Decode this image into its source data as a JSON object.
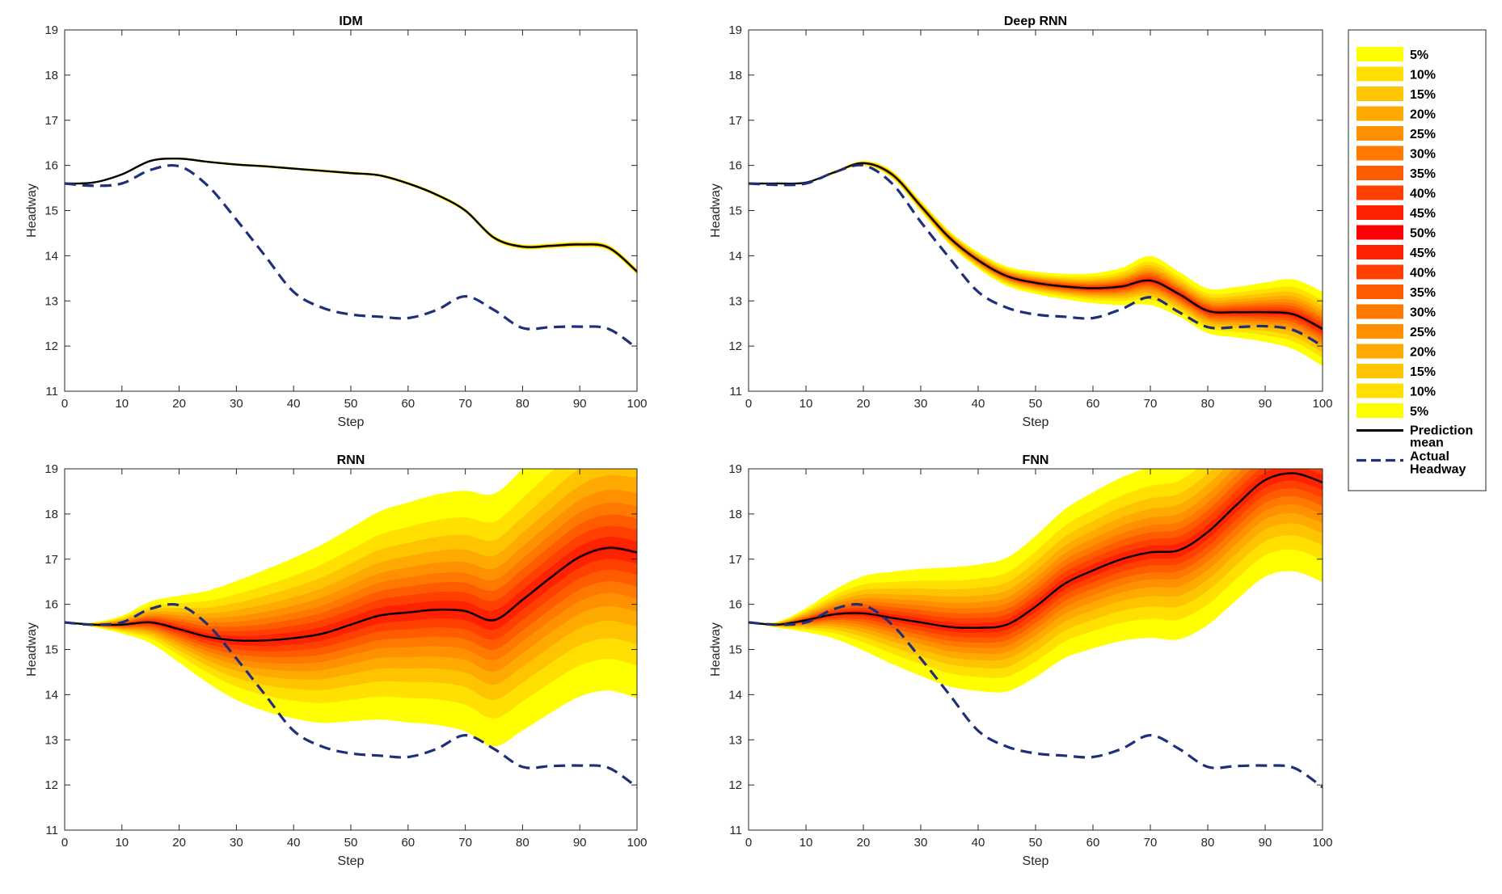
{
  "legend": {
    "bands": [
      {
        "label": "5%",
        "color": "#ffff00"
      },
      {
        "label": "10%",
        "color": "#ffe000"
      },
      {
        "label": "15%",
        "color": "#ffc400"
      },
      {
        "label": "20%",
        "color": "#ffaa00"
      },
      {
        "label": "25%",
        "color": "#ff9000"
      },
      {
        "label": "30%",
        "color": "#ff7800"
      },
      {
        "label": "35%",
        "color": "#ff5c00"
      },
      {
        "label": "40%",
        "color": "#ff4000"
      },
      {
        "label": "45%",
        "color": "#ff2200"
      },
      {
        "label": "50%",
        "color": "#ff0000"
      }
    ],
    "mean_label": [
      "Prediction",
      "mean"
    ],
    "actual_label": [
      "Actual",
      "Headway"
    ],
    "mean_color": "#000000",
    "actual_color": "#1f2f7a"
  },
  "chart_data": [
    {
      "type": "area",
      "title": "IDM",
      "xlabel": "Step",
      "ylabel": "Headway",
      "xlim": [
        0,
        100
      ],
      "ylim": [
        11,
        19
      ],
      "xticks": [
        0,
        10,
        20,
        30,
        40,
        50,
        60,
        70,
        80,
        90,
        100
      ],
      "yticks": [
        11,
        12,
        13,
        14,
        15,
        16,
        17,
        18,
        19
      ],
      "x": [
        0,
        5,
        10,
        15,
        20,
        25,
        30,
        35,
        40,
        45,
        50,
        55,
        60,
        65,
        70,
        75,
        80,
        85,
        90,
        95,
        100
      ],
      "mean": [
        15.6,
        15.62,
        15.8,
        16.1,
        16.15,
        16.08,
        16.02,
        15.98,
        15.93,
        15.88,
        15.83,
        15.78,
        15.6,
        15.35,
        15.0,
        14.4,
        14.2,
        14.22,
        14.25,
        14.18,
        13.65
      ],
      "actual": [
        15.6,
        15.55,
        15.6,
        15.9,
        15.98,
        15.55,
        14.8,
        14.0,
        13.2,
        12.85,
        12.7,
        12.65,
        12.62,
        12.8,
        13.1,
        12.8,
        12.4,
        12.42,
        12.43,
        12.38,
        11.95
      ],
      "spread": [
        0,
        0.005,
        0.01,
        0.012,
        0.014,
        0.014,
        0.015,
        0.016,
        0.016,
        0.017,
        0.018,
        0.018,
        0.02,
        0.022,
        0.024,
        0.028,
        0.03,
        0.032,
        0.034,
        0.036,
        0.038
      ]
    },
    {
      "type": "area",
      "title": "Deep RNN",
      "xlabel": "Step",
      "ylabel": "Headway",
      "xlim": [
        0,
        100
      ],
      "ylim": [
        11,
        19
      ],
      "xticks": [
        0,
        10,
        20,
        30,
        40,
        50,
        60,
        70,
        80,
        90,
        100
      ],
      "yticks": [
        11,
        12,
        13,
        14,
        15,
        16,
        17,
        18,
        19
      ],
      "x": [
        0,
        5,
        10,
        15,
        20,
        25,
        30,
        35,
        40,
        45,
        50,
        55,
        60,
        65,
        70,
        75,
        80,
        85,
        90,
        95,
        100
      ],
      "mean": [
        15.6,
        15.6,
        15.62,
        15.85,
        16.05,
        15.8,
        15.1,
        14.4,
        13.9,
        13.55,
        13.4,
        13.32,
        13.28,
        13.32,
        13.45,
        13.15,
        12.78,
        12.75,
        12.75,
        12.7,
        12.38
      ],
      "actual": [
        15.6,
        15.57,
        15.6,
        15.85,
        16.0,
        15.6,
        14.75,
        13.95,
        13.2,
        12.85,
        12.7,
        12.65,
        12.62,
        12.82,
        13.08,
        12.75,
        12.42,
        12.42,
        12.44,
        12.35,
        12.0
      ],
      "spread": [
        0,
        0.005,
        0.01,
        0.02,
        0.03,
        0.05,
        0.07,
        0.09,
        0.11,
        0.13,
        0.15,
        0.17,
        0.2,
        0.25,
        0.33,
        0.3,
        0.3,
        0.34,
        0.4,
        0.47,
        0.5
      ]
    },
    {
      "type": "area",
      "title": "RNN",
      "xlabel": "Step",
      "ylabel": "Headway",
      "xlim": [
        0,
        100
      ],
      "ylim": [
        11,
        19
      ],
      "xticks": [
        0,
        10,
        20,
        30,
        40,
        50,
        60,
        70,
        80,
        90,
        100
      ],
      "yticks": [
        11,
        12,
        13,
        14,
        15,
        16,
        17,
        18,
        19
      ],
      "x": [
        0,
        5,
        10,
        15,
        20,
        25,
        30,
        35,
        40,
        45,
        50,
        55,
        60,
        65,
        70,
        75,
        80,
        85,
        90,
        95,
        100
      ],
      "mean": [
        15.6,
        15.55,
        15.55,
        15.6,
        15.45,
        15.28,
        15.2,
        15.2,
        15.25,
        15.35,
        15.55,
        15.75,
        15.82,
        15.88,
        15.85,
        15.65,
        16.1,
        16.6,
        17.05,
        17.25,
        17.15
      ],
      "actual": [
        15.6,
        15.55,
        15.6,
        15.9,
        15.98,
        15.55,
        14.8,
        14.0,
        13.2,
        12.85,
        12.7,
        12.65,
        12.62,
        12.8,
        13.1,
        12.8,
        12.4,
        12.42,
        12.43,
        12.38,
        11.95
      ],
      "spread": [
        0,
        0.03,
        0.12,
        0.28,
        0.45,
        0.62,
        0.8,
        0.95,
        1.08,
        1.2,
        1.3,
        1.4,
        1.48,
        1.55,
        1.62,
        1.7,
        1.76,
        1.82,
        1.88,
        1.92,
        1.96
      ]
    },
    {
      "type": "area",
      "title": "FNN",
      "xlabel": "Step",
      "ylabel": "Headway",
      "xlim": [
        0,
        100
      ],
      "ylim": [
        11,
        19
      ],
      "xticks": [
        0,
        10,
        20,
        30,
        40,
        50,
        60,
        70,
        80,
        90,
        100
      ],
      "yticks": [
        11,
        12,
        13,
        14,
        15,
        16,
        17,
        18,
        19
      ],
      "x": [
        0,
        5,
        10,
        15,
        20,
        25,
        30,
        35,
        40,
        45,
        50,
        55,
        60,
        65,
        70,
        75,
        80,
        85,
        90,
        95,
        100
      ],
      "mean": [
        15.6,
        15.55,
        15.65,
        15.78,
        15.8,
        15.7,
        15.6,
        15.5,
        15.48,
        15.55,
        15.95,
        16.45,
        16.75,
        17.0,
        17.15,
        17.2,
        17.6,
        18.2,
        18.75,
        18.9,
        18.7
      ],
      "actual": [
        15.6,
        15.55,
        15.6,
        15.9,
        15.98,
        15.55,
        14.8,
        14.0,
        13.2,
        12.85,
        12.7,
        12.65,
        12.62,
        12.8,
        13.1,
        12.8,
        12.4,
        12.42,
        12.43,
        12.38,
        11.95
      ],
      "spread": [
        0,
        0.04,
        0.16,
        0.33,
        0.5,
        0.62,
        0.72,
        0.8,
        0.85,
        0.9,
        0.95,
        1.0,
        1.05,
        1.1,
        1.15,
        1.2,
        1.25,
        1.28,
        1.3,
        1.32,
        1.34
      ]
    }
  ]
}
